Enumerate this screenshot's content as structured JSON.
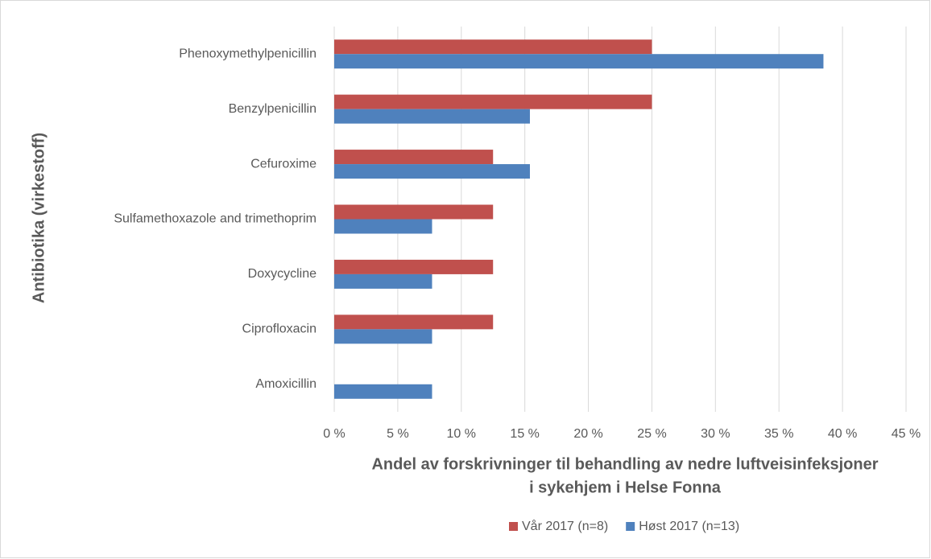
{
  "chart_data": {
    "type": "bar",
    "orientation": "horizontal",
    "xlabel": [
      "Andel av forskrivninger til behandling  av nedre luftveisinfeksjoner",
      "i sykehjem i Helse Fonna"
    ],
    "ylabel": "Antibiotika (virkestoff)",
    "categories": [
      "Phenoxymethylpenicillin",
      "Benzylpenicillin",
      "Cefuroxime",
      "Sulfamethoxazole and trimethoprim",
      "Doxycycline",
      "Ciprofloxacin",
      "Amoxicillin"
    ],
    "series": [
      {
        "name": "Vår 2017 (n=8)",
        "color": "#c0504d",
        "values": [
          25,
          25,
          12.5,
          12.5,
          12.5,
          12.5,
          0
        ]
      },
      {
        "name": "Høst 2017 (n=13)",
        "color": "#4f81bd",
        "values": [
          38.5,
          15.4,
          15.4,
          7.7,
          7.7,
          7.7,
          7.7
        ]
      }
    ],
    "xlim": [
      0,
      45
    ],
    "xticks": [
      {
        "value": 0,
        "label": "0 %"
      },
      {
        "value": 5,
        "label": "5 %"
      },
      {
        "value": 10,
        "label": "10 %"
      },
      {
        "value": 15,
        "label": "15 %"
      },
      {
        "value": 20,
        "label": "20 %"
      },
      {
        "value": 25,
        "label": "25 %"
      },
      {
        "value": 30,
        "label": "30 %"
      },
      {
        "value": 35,
        "label": "35 %"
      },
      {
        "value": 40,
        "label": "40 %"
      },
      {
        "value": 45,
        "label": "45 %"
      }
    ],
    "grid": true,
    "legend": "bottom"
  }
}
